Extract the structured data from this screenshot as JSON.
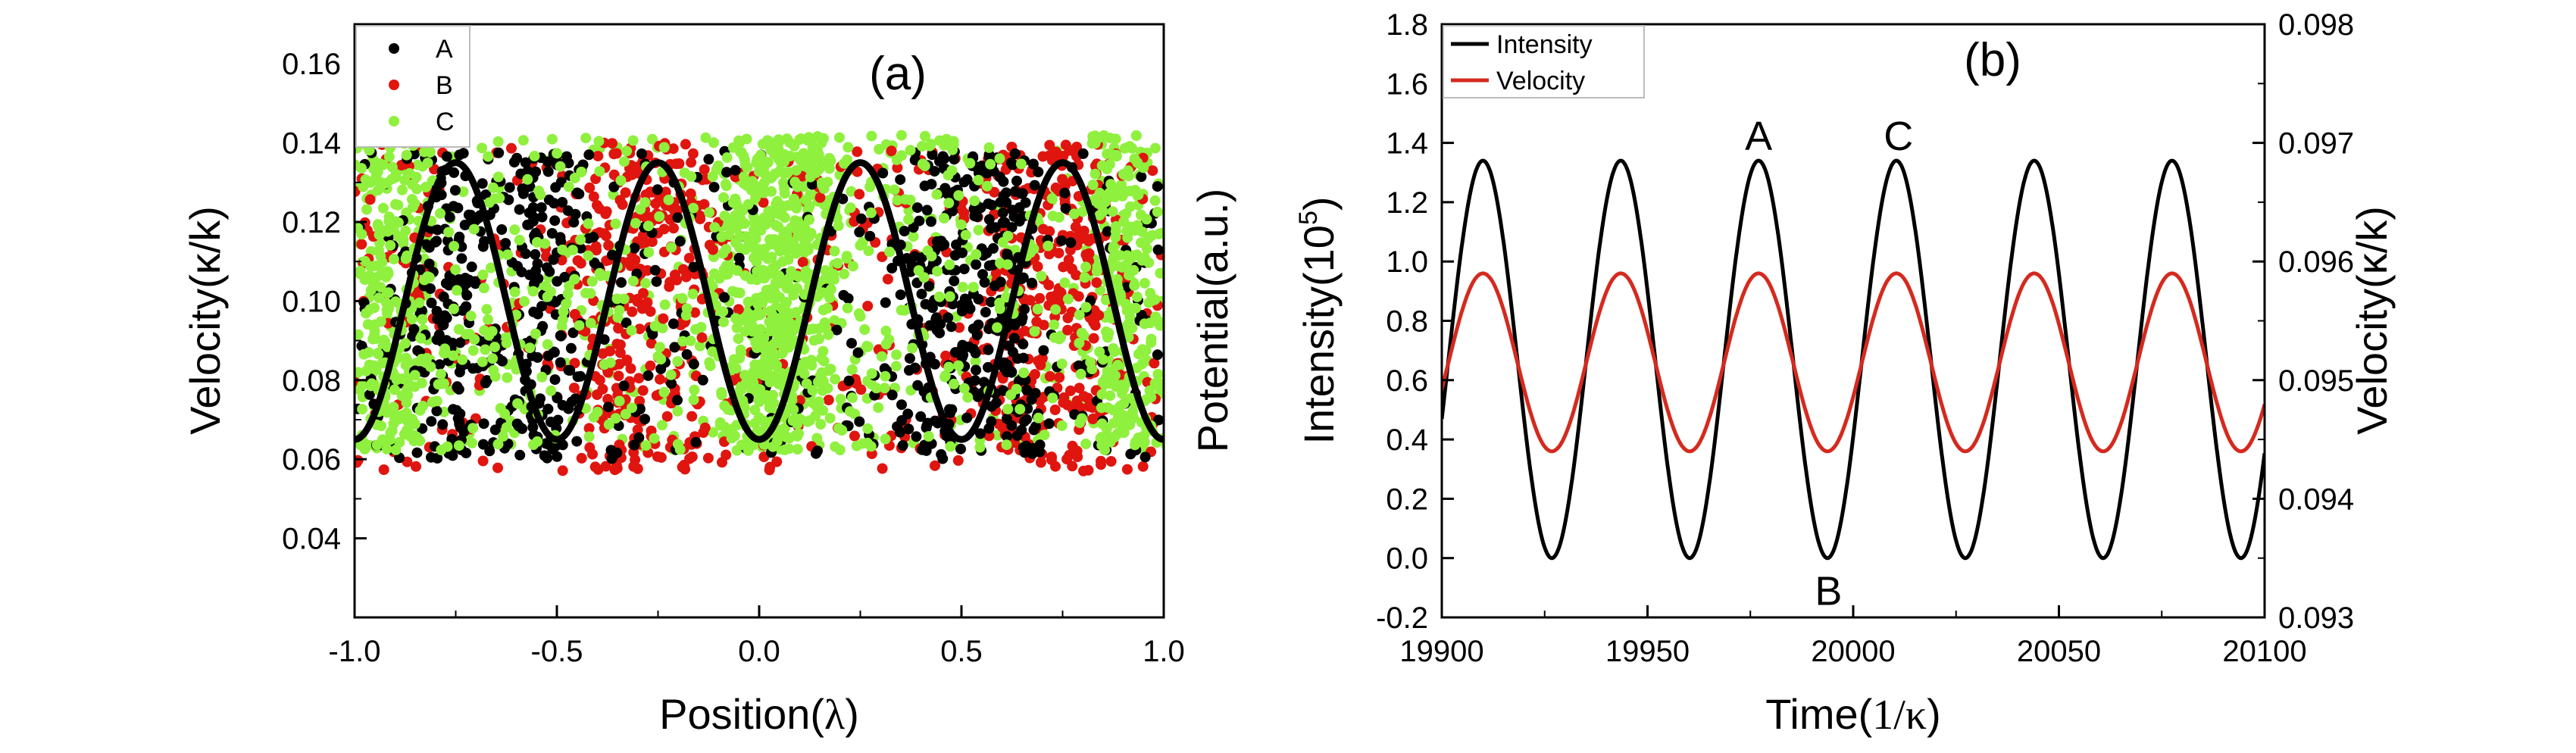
{
  "chart_data": [
    {
      "type": "scatter",
      "panel_label": "(a)",
      "xlabel_main": "Position(",
      "xlabel_sym": "λ",
      "xlabel_end": ")",
      "ylabel": "Velocity(κ/k)",
      "y2label": "Potential(a.u.)",
      "xlim": [
        -1.0,
        1.0
      ],
      "ylim": [
        0.02,
        0.17
      ],
      "xticks": [
        -1.0,
        -0.5,
        0.0,
        0.5,
        1.0
      ],
      "xtick_labels": [
        "-1.0",
        "-0.5",
        "0.0",
        "0.5",
        "1.0"
      ],
      "yticks": [
        0.04,
        0.06,
        0.08,
        0.1,
        0.12,
        0.14,
        0.16
      ],
      "ytick_labels": [
        "0.04",
        "0.06",
        "0.08",
        "0.10",
        "0.12",
        "0.14",
        "0.16"
      ],
      "legend_position": "top-left",
      "grid": false,
      "series": [
        {
          "name": "A",
          "color": "#000000",
          "marker": "circle",
          "x_range": [
            -1.0,
            1.0
          ],
          "y_range": [
            0.06,
            0.138
          ],
          "clusters_x": [
            -0.75,
            -0.55,
            0.45,
            0.6
          ]
        },
        {
          "name": "B",
          "color": "#e0150f",
          "marker": "circle",
          "x_range": [
            -1.0,
            1.0
          ],
          "y_range": [
            0.057,
            0.14
          ],
          "clusters_x": [
            -0.35,
            -0.2,
            0.65,
            0.8
          ]
        },
        {
          "name": "C",
          "color": "#8ff03e",
          "marker": "circle",
          "x_range": [
            -1.0,
            1.0
          ],
          "y_range": [
            0.062,
            0.142
          ],
          "clusters_x": [
            -0.9,
            0.0,
            0.1,
            0.9
          ]
        }
      ],
      "potential_curve": {
        "color": "#000000",
        "function": "cos(4πx)",
        "x": [
          -1.0,
          -0.75,
          -0.5,
          -0.25,
          0.0,
          0.25,
          0.5,
          0.75,
          1.0
        ],
        "y": [
          0.065,
          0.135,
          0.065,
          0.135,
          0.065,
          0.135,
          0.065,
          0.135,
          0.065
        ]
      }
    },
    {
      "type": "line",
      "panel_label": "(b)",
      "xlabel_main": "Time(",
      "xlabel_sym": "1/κ",
      "xlabel_end": ")",
      "ylabel_main": "Intensity(10",
      "ylabel_sup": "5",
      "ylabel_end": ")",
      "y2label": "Velocity(κ/k)",
      "xlim": [
        19900,
        20100
      ],
      "ylim": [
        -0.2,
        1.8
      ],
      "y2lim": [
        0.093,
        0.098
      ],
      "xticks": [
        19900,
        19950,
        20000,
        20050,
        20100
      ],
      "xtick_labels": [
        "19900",
        "19950",
        "20000",
        "20050",
        "20100"
      ],
      "yticks": [
        -0.2,
        0.0,
        0.2,
        0.4,
        0.6,
        0.8,
        1.0,
        1.2,
        1.4,
        1.6,
        1.8
      ],
      "ytick_labels": [
        "-0.2",
        "0.0",
        "0.2",
        "0.4",
        "0.6",
        "0.8",
        "1.0",
        "1.2",
        "1.4",
        "1.6",
        "1.8"
      ],
      "y2ticks": [
        0.093,
        0.094,
        0.095,
        0.096,
        0.097,
        0.098
      ],
      "y2tick_labels": [
        "0.093",
        "0.094",
        "0.095",
        "0.096",
        "0.097",
        "0.098"
      ],
      "legend_position": "top-left",
      "grid": false,
      "period": 33.5,
      "series": [
        {
          "name": "Intensity",
          "color": "#000000",
          "axis": "left",
          "max": 1.34,
          "min": 0.0,
          "first_peak_x": 19910
        },
        {
          "name": "Velocity",
          "color": "#d42a1f",
          "axis": "right",
          "max": 0.0959,
          "min": 0.0944,
          "first_peak_x": 19910
        }
      ],
      "annotations": [
        {
          "text": "A",
          "x": 19977,
          "y": 1.34,
          "place": "above"
        },
        {
          "text": "B",
          "x": 19994,
          "y": 0.0,
          "place": "below"
        },
        {
          "text": "C",
          "x": 20011,
          "y": 1.34,
          "place": "above"
        }
      ]
    }
  ]
}
